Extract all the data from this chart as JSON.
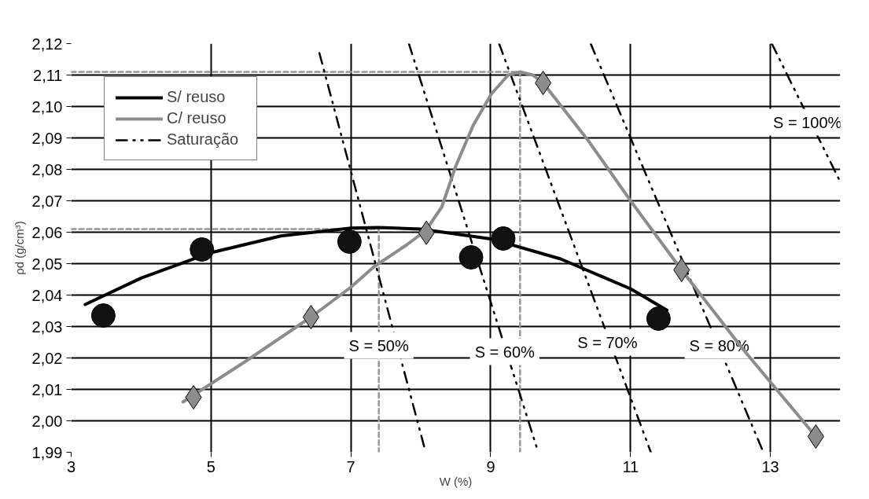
{
  "chart_data": {
    "type": "line",
    "xlabel": "W (%)",
    "ylabel": "ρd (g/cm³)",
    "xlim": [
      3,
      14
    ],
    "ylim": [
      1.99,
      2.12
    ],
    "xticks": [
      3,
      5,
      7,
      9,
      11,
      13
    ],
    "yticks": [
      {
        "value": 1.99,
        "label": "1,99"
      },
      {
        "value": 2.0,
        "label": "2,00"
      },
      {
        "value": 2.01,
        "label": "2,01"
      },
      {
        "value": 2.02,
        "label": "2,02"
      },
      {
        "value": 2.03,
        "label": "2,03"
      },
      {
        "value": 2.04,
        "label": "2,04"
      },
      {
        "value": 2.05,
        "label": "2,05"
      },
      {
        "value": 2.06,
        "label": "2,06"
      },
      {
        "value": 2.07,
        "label": "2,07"
      },
      {
        "value": 2.08,
        "label": "2,08"
      },
      {
        "value": 2.09,
        "label": "2,09"
      },
      {
        "value": 2.1,
        "label": "2,10"
      },
      {
        "value": 2.11,
        "label": "2,11"
      },
      {
        "value": 2.12,
        "label": "2,12"
      }
    ],
    "grid": true,
    "legend": "top left",
    "series": [
      {
        "color": "#969696",
        "line_style": "dashed",
        "x": [
          3,
          9.42,
          9.42
        ],
        "values": [
          2.111,
          2.111,
          1.99
        ]
      },
      {
        "color": "#969696",
        "line_style": "dashed",
        "x": [
          3,
          7.4,
          7.4
        ],
        "values": [
          2.061,
          2.061,
          1.99
        ]
      },
      {
        "name": "Saturação",
        "color": "#000000",
        "line_style": "dashdot",
        "x": [
          6.55,
          8.07
        ],
        "values": [
          2.117,
          1.99
        ]
      },
      {
        "color": "#000000",
        "line_style": "dashdot",
        "x": [
          7.83,
          9.68
        ],
        "values": [
          2.12,
          1.99
        ]
      },
      {
        "color": "#000000",
        "line_style": "dashdot",
        "x": [
          9.12,
          11.29
        ],
        "values": [
          2.12,
          1.99
        ]
      },
      {
        "color": "#000000",
        "line_style": "dashdot",
        "x": [
          10.43,
          12.9
        ],
        "values": [
          2.12,
          1.99
        ]
      },
      {
        "color": "#000000",
        "line_style": "dashdot",
        "x": [
          13.02,
          14
        ],
        "values": [
          2.12,
          2.076
        ]
      },
      {
        "name": "S/ reuso",
        "color": "#000000",
        "line_style": "solid",
        "x": [
          3.2,
          4,
          5,
          6,
          7,
          7.4,
          8,
          9,
          10,
          11,
          11.52
        ],
        "values": [
          2.037,
          2.0454,
          2.0535,
          2.0588,
          2.0613,
          2.0615,
          2.061,
          2.0579,
          2.0515,
          2.042,
          2.0352
        ]
      },
      {
        "name": "C/ reuso",
        "color": "#8c8c8c",
        "line_style": "solid",
        "x": [
          4.6,
          5.5,
          6.43,
          7,
          7.33,
          7.8,
          8.07,
          8.3,
          8.5,
          8.75,
          9.01,
          9.25,
          9.42,
          9.6,
          9.75,
          10.4,
          11,
          11.73,
          12.6,
          13.65
        ],
        "values": [
          2.006,
          2.019,
          2.033,
          2.0425,
          2.049,
          2.056,
          2.0605,
          2.068,
          2.081,
          2.094,
          2.104,
          2.11,
          2.111,
          2.11,
          2.1075,
          2.089,
          2.07,
          2.048,
          2.023,
          1.995
        ]
      },
      {
        "type": "scatter",
        "marker": "circle",
        "color": "#111111",
        "x": [
          3.46,
          4.87,
          6.98,
          8.72,
          9.18,
          11.4
        ],
        "values": [
          2.0335,
          2.0545,
          2.057,
          2.052,
          2.058,
          2.0325
        ]
      },
      {
        "type": "scatter",
        "marker": "diamond",
        "color": "#8c8c8c",
        "x": [
          4.75,
          6.43,
          8.08,
          9.75,
          11.73,
          13.65
        ],
        "values": [
          2.0075,
          2.033,
          2.0598,
          2.1075,
          2.048,
          1.995
        ]
      }
    ],
    "annotations": [
      {
        "text": "S = 50%",
        "x": 7.4,
        "y": 2.024
      },
      {
        "text": "S = 60%",
        "x": 9.2,
        "y": 2.022
      },
      {
        "text": "S = 70%",
        "x": 10.67,
        "y": 2.025
      },
      {
        "text": "S = 80%",
        "x": 12.27,
        "y": 2.024
      },
      {
        "text": "S = 100%",
        "x": 13.53,
        "y": 2.095
      }
    ]
  }
}
